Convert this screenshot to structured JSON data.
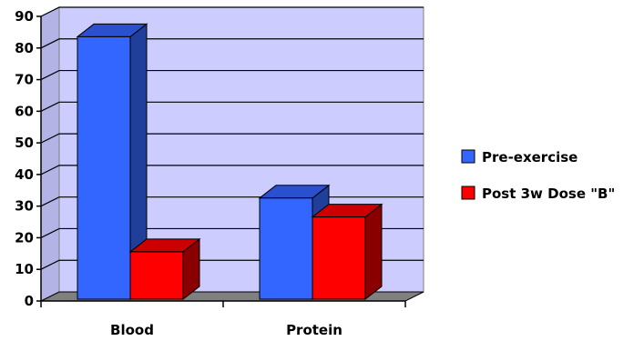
{
  "chart_data": {
    "type": "bar",
    "title": "",
    "xlabel": "",
    "ylabel": "",
    "categories": [
      "Blood",
      "Protein"
    ],
    "series": [
      {
        "name": "Pre-exercise",
        "values": [
          87,
          36
        ],
        "color": "#3366ff",
        "top_color": "#2a4fcf",
        "side_color": "#1f3f9a"
      },
      {
        "name": "Post 3w Dose \"B\"",
        "values": [
          19,
          30
        ],
        "color": "#ff0000",
        "top_color": "#cc0000",
        "side_color": "#8a0000"
      }
    ],
    "ylim": [
      0,
      90
    ],
    "yticks": [
      "0",
      "10",
      "20",
      "30",
      "40",
      "50",
      "60",
      "70",
      "80",
      "90"
    ],
    "grid": true,
    "legend_position": "right",
    "plot_background": "#ccccff",
    "floor_color": "#808080",
    "three_d": true
  }
}
